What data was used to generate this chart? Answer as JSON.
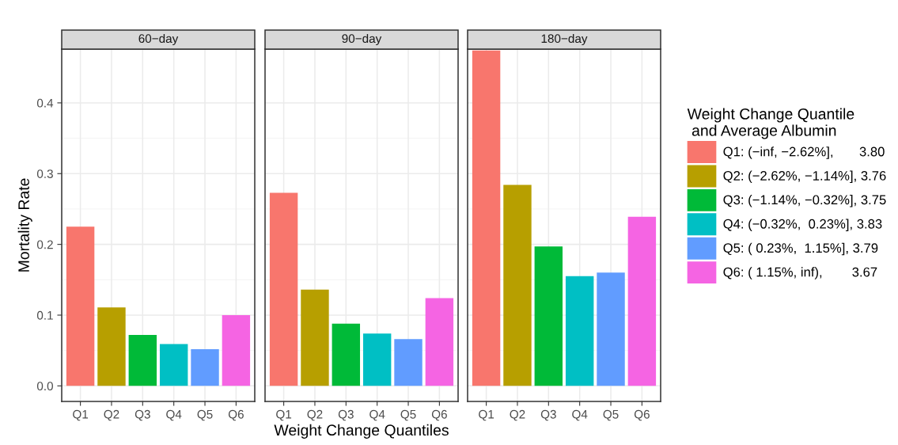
{
  "chart_data": [
    {
      "type": "bar",
      "title": "60−day",
      "ylabel": "Mortality Rate",
      "categories": [
        "Q1",
        "Q2",
        "Q3",
        "Q4",
        "Q5",
        "Q6"
      ],
      "values": [
        0.225,
        0.111,
        0.072,
        0.059,
        0.052,
        0.1
      ],
      "colors": [
        "#f8766d",
        "#b79f00",
        "#00ba38",
        "#00bfc4",
        "#619cff",
        "#f564e3"
      ],
      "ylim": [
        -0.022,
        0.476
      ],
      "yticks": [
        {
          "value": 0,
          "label": "0.0"
        },
        0.1,
        0.2,
        0.3,
        0.4
      ],
      "grid": true
    },
    {
      "type": "bar",
      "title": "90−day",
      "xlabel": "Weight Change Quantiles",
      "categories": [
        "Q1",
        "Q2",
        "Q3",
        "Q4",
        "Q5",
        "Q6"
      ],
      "values": [
        0.273,
        0.136,
        0.088,
        0.074,
        0.066,
        0.124
      ],
      "colors": [
        "#f8766d",
        "#b79f00",
        "#00ba38",
        "#00bfc4",
        "#619cff",
        "#f564e3"
      ],
      "ylim": [
        -0.022,
        0.476
      ],
      "yticks": [
        0,
        0.1,
        0.2,
        0.3,
        0.4
      ],
      "tick_labels": "x",
      "grid": true
    },
    {
      "type": "bar",
      "title": "180−day",
      "categories": [
        "Q1",
        "Q2",
        "Q3",
        "Q4",
        "Q5",
        "Q6"
      ],
      "ylim": [
        -0.022,
        0.476
      ],
      "yticks": [
        0,
        0.1,
        0.2,
        0.3,
        0.4
      ],
      "tick_labels": "x",
      "grid": true,
      "legend": "right",
      "legend_title": "Weight Change Quantile\n and Average Albumin",
      "series": [
        {
          "name": "Q1: (−inf, −2.62%],       3.80",
          "color": "#f8766d",
          "values": [
            0.474,
            null,
            null,
            null,
            null,
            null
          ]
        },
        {
          "name": "Q2: (−2.62%, −1.14%], 3.76",
          "color": "#b79f00",
          "values": [
            null,
            0.284,
            null,
            null,
            null,
            null
          ]
        },
        {
          "name": "Q3: (−1.14%, −0.32%], 3.75",
          "color": "#00ba38",
          "values": [
            null,
            null,
            0.197,
            null,
            null,
            null
          ]
        },
        {
          "name": "Q4: (−0.32%,  0.23%], 3.83",
          "color": "#00bfc4",
          "values": [
            null,
            null,
            null,
            0.155,
            null,
            null
          ]
        },
        {
          "name": "Q5: ( 0.23%,  1.15%], 3.79",
          "color": "#619cff",
          "values": [
            null,
            null,
            null,
            null,
            0.16,
            null
          ]
        },
        {
          "name": "Q6: ( 1.15%, inf),        3.67",
          "color": "#f564e3",
          "values": [
            null,
            null,
            null,
            null,
            null,
            0.239
          ]
        }
      ]
    }
  ]
}
